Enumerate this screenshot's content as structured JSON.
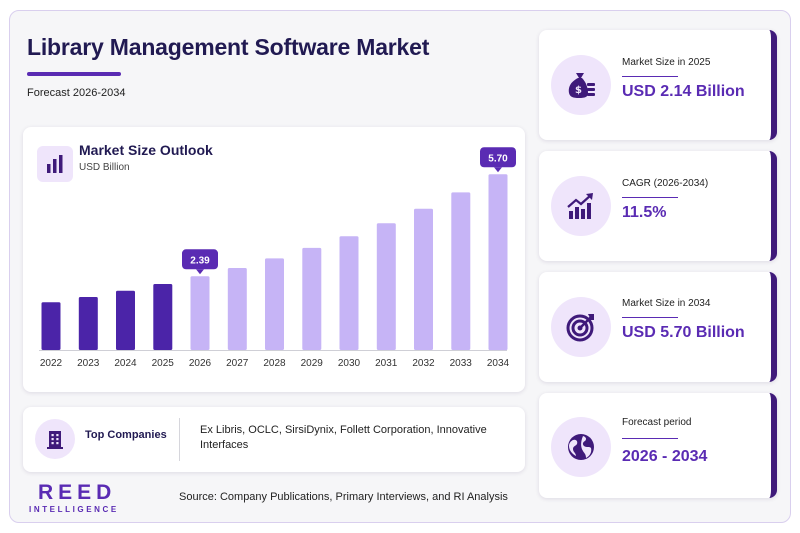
{
  "header": {
    "title": "Library Management Software Market",
    "subtitle": "Forecast 2026-2034"
  },
  "chart": {
    "title": "Market Size Outlook",
    "unit": "USD Billion"
  },
  "chart_data": {
    "type": "bar",
    "title": "Market Size Outlook",
    "ylabel": "USD Billion",
    "categories": [
      "2022",
      "2023",
      "2024",
      "2025",
      "2026",
      "2027",
      "2028",
      "2029",
      "2030",
      "2031",
      "2032",
      "2033",
      "2034"
    ],
    "values": [
      1.55,
      1.72,
      1.92,
      2.14,
      2.39,
      2.66,
      2.97,
      3.31,
      3.69,
      4.11,
      4.58,
      5.11,
      5.7
    ],
    "ylim": [
      0,
      6.0
    ],
    "grid": false,
    "annotations": [
      {
        "category": "2026",
        "label": "2.39"
      },
      {
        "category": "2034",
        "label": "5.70"
      }
    ],
    "colors": {
      "historical": "#4b24a8",
      "forecast": "#c6b4f6",
      "callout": "#5a2bb3"
    },
    "historical_until": "2025"
  },
  "companies": {
    "label": "Top Companies",
    "list": "Ex Libris, OCLC, SirsiDynix, Follett Corporation, Innovative Interfaces"
  },
  "stats": [
    {
      "label": "Market Size in 2025",
      "value": "USD 2.14 Billion",
      "icon": "money-bag-icon"
    },
    {
      "label": "CAGR (2026-2034)",
      "value": "11.5%",
      "icon": "growth-chart-icon"
    },
    {
      "label": "Market Size in 2034",
      "value": "USD 5.70 Billion",
      "icon": "target-icon"
    },
    {
      "label": "Forecast period",
      "value": "2026 - 2034",
      "icon": "globe-icon"
    }
  ],
  "footer": {
    "logo_main": "REED",
    "logo_sub": "INTELLIGENCE",
    "source": "Source: Company Publications, Primary Interviews, and RI Analysis"
  }
}
